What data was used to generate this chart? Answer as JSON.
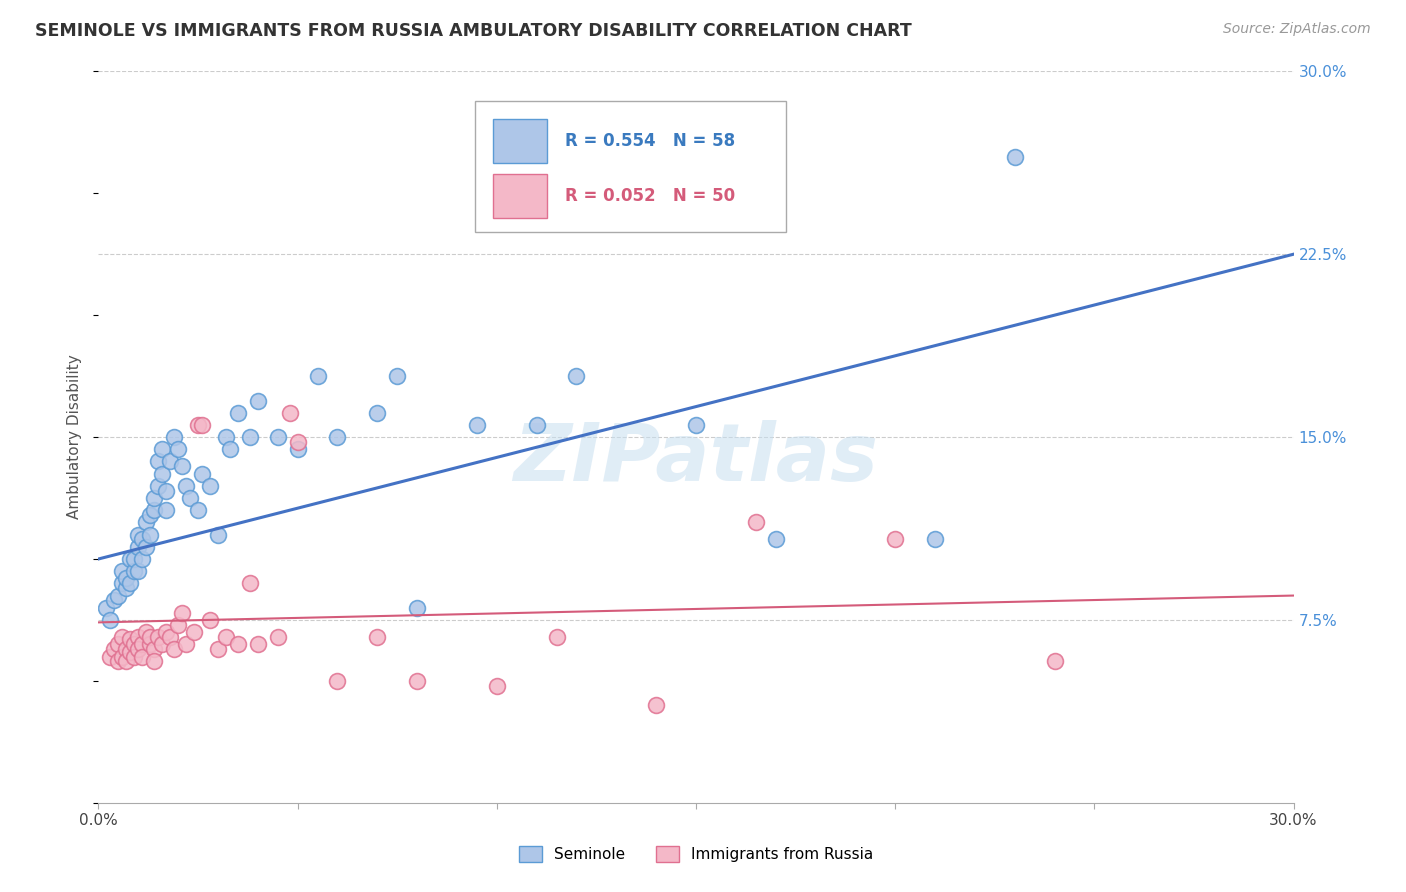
{
  "title": "SEMINOLE VS IMMIGRANTS FROM RUSSIA AMBULATORY DISABILITY CORRELATION CHART",
  "source": "Source: ZipAtlas.com",
  "ylabel": "Ambulatory Disability",
  "xlabel": "",
  "xlim": [
    0.0,
    0.3
  ],
  "ylim": [
    0.0,
    0.3
  ],
  "x_ticks": [
    0.0,
    0.05,
    0.1,
    0.15,
    0.2,
    0.25,
    0.3
  ],
  "x_tick_labels": [
    "0.0%",
    "",
    "",
    "",
    "",
    "",
    "30.0%"
  ],
  "y_ticks_right": [
    0.075,
    0.15,
    0.225,
    0.3
  ],
  "y_tick_labels_right": [
    "7.5%",
    "15.0%",
    "22.5%",
    "30.0%"
  ],
  "background_color": "#ffffff",
  "grid_color": "#cccccc",
  "watermark": "ZIPatlas",
  "legend_r1": "0.554",
  "legend_n1": "58",
  "legend_r2": "0.052",
  "legend_n2": "50",
  "series1_color": "#aec6e8",
  "series1_edge_color": "#5b9bd5",
  "series1_line_color": "#4472c4",
  "series2_color": "#f4b8c8",
  "series2_edge_color": "#e07090",
  "series2_line_color": "#d45b7a",
  "series1_label": "Seminole",
  "series2_label": "Immigrants from Russia",
  "blue_line_x0": 0.0,
  "blue_line_y0": 0.1,
  "blue_line_x1": 0.3,
  "blue_line_y1": 0.225,
  "pink_line_x0": 0.0,
  "pink_line_y0": 0.074,
  "pink_line_x1": 0.3,
  "pink_line_y1": 0.085,
  "seminole_x": [
    0.002,
    0.003,
    0.004,
    0.005,
    0.006,
    0.006,
    0.007,
    0.007,
    0.008,
    0.008,
    0.009,
    0.009,
    0.01,
    0.01,
    0.01,
    0.011,
    0.011,
    0.012,
    0.012,
    0.013,
    0.013,
    0.014,
    0.014,
    0.015,
    0.015,
    0.016,
    0.016,
    0.017,
    0.017,
    0.018,
    0.019,
    0.02,
    0.021,
    0.022,
    0.023,
    0.025,
    0.026,
    0.028,
    0.03,
    0.032,
    0.033,
    0.035,
    0.038,
    0.04,
    0.045,
    0.05,
    0.055,
    0.06,
    0.07,
    0.075,
    0.08,
    0.095,
    0.11,
    0.12,
    0.15,
    0.17,
    0.21,
    0.23
  ],
  "seminole_y": [
    0.08,
    0.075,
    0.083,
    0.085,
    0.09,
    0.095,
    0.088,
    0.092,
    0.09,
    0.1,
    0.095,
    0.1,
    0.095,
    0.105,
    0.11,
    0.1,
    0.108,
    0.105,
    0.115,
    0.11,
    0.118,
    0.12,
    0.125,
    0.13,
    0.14,
    0.135,
    0.145,
    0.12,
    0.128,
    0.14,
    0.15,
    0.145,
    0.138,
    0.13,
    0.125,
    0.12,
    0.135,
    0.13,
    0.11,
    0.15,
    0.145,
    0.16,
    0.15,
    0.165,
    0.15,
    0.145,
    0.175,
    0.15,
    0.16,
    0.175,
    0.08,
    0.155,
    0.155,
    0.175,
    0.155,
    0.108,
    0.108,
    0.265
  ],
  "russia_x": [
    0.003,
    0.004,
    0.005,
    0.005,
    0.006,
    0.006,
    0.007,
    0.007,
    0.008,
    0.008,
    0.009,
    0.009,
    0.01,
    0.01,
    0.011,
    0.011,
    0.012,
    0.013,
    0.013,
    0.014,
    0.014,
    0.015,
    0.016,
    0.017,
    0.018,
    0.019,
    0.02,
    0.021,
    0.022,
    0.024,
    0.025,
    0.026,
    0.028,
    0.03,
    0.032,
    0.035,
    0.038,
    0.04,
    0.045,
    0.048,
    0.05,
    0.06,
    0.07,
    0.08,
    0.1,
    0.115,
    0.14,
    0.165,
    0.2,
    0.24
  ],
  "russia_y": [
    0.06,
    0.063,
    0.058,
    0.065,
    0.06,
    0.068,
    0.063,
    0.058,
    0.062,
    0.067,
    0.065,
    0.06,
    0.068,
    0.063,
    0.065,
    0.06,
    0.07,
    0.065,
    0.068,
    0.063,
    0.058,
    0.068,
    0.065,
    0.07,
    0.068,
    0.063,
    0.073,
    0.078,
    0.065,
    0.07,
    0.155,
    0.155,
    0.075,
    0.063,
    0.068,
    0.065,
    0.09,
    0.065,
    0.068,
    0.16,
    0.148,
    0.05,
    0.068,
    0.05,
    0.048,
    0.068,
    0.04,
    0.115,
    0.108,
    0.058
  ]
}
